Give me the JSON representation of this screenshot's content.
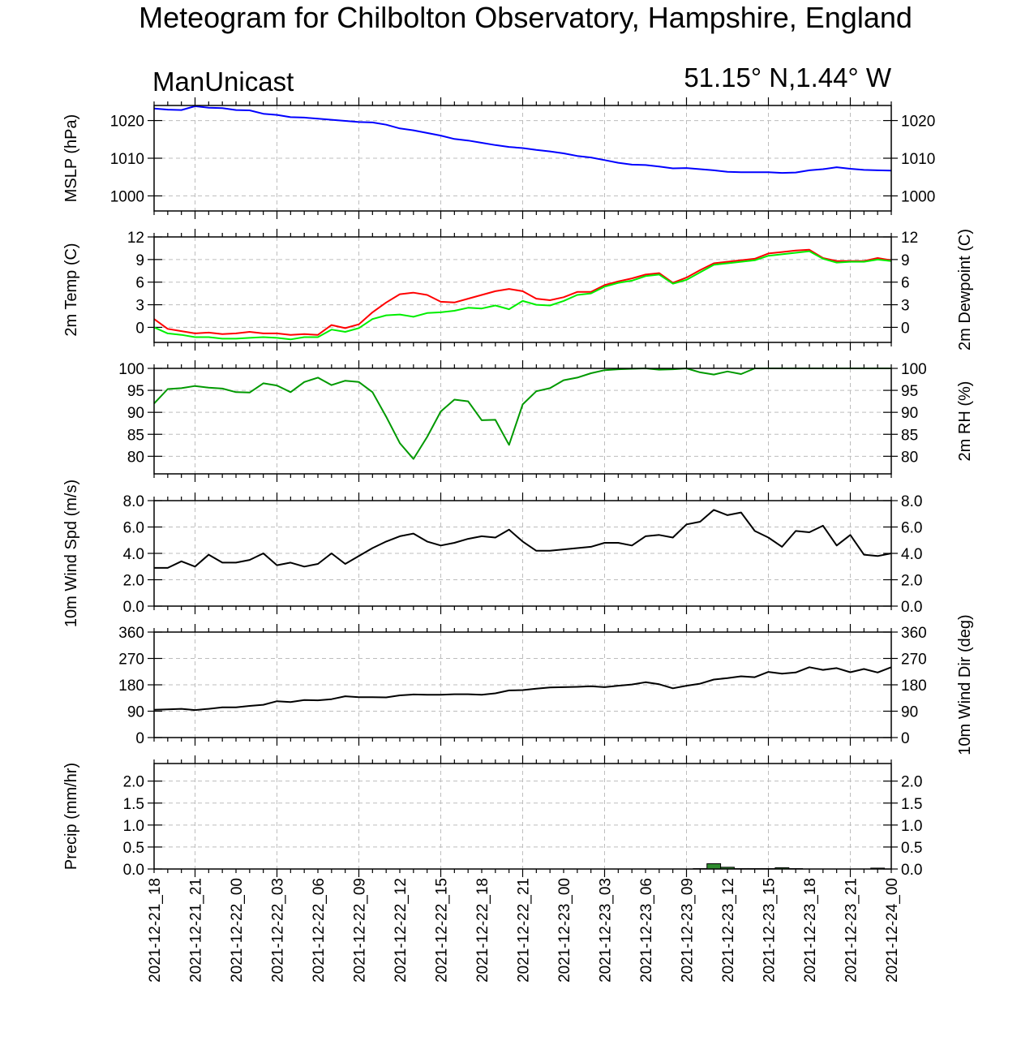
{
  "title": "Meteogram for Chilbolton Observatory, Hampshire, England",
  "model": "ManUnicast",
  "location": "51.15° N,1.44° W",
  "x_tick_labels": [
    "2021-12-21_18",
    "2021-12-21_21",
    "2021-12-22_00",
    "2021-12-22_03",
    "2021-12-22_06",
    "2021-12-22_09",
    "2021-12-22_12",
    "2021-12-22_15",
    "2021-12-22_18",
    "2021-12-22_21",
    "2021-12-23_00",
    "2021-12-23_03",
    "2021-12-23_06",
    "2021-12-23_09",
    "2021-12-23_12",
    "2021-12-23_15",
    "2021-12-23_18",
    "2021-12-23_21",
    "2021-12-24_00"
  ],
  "chart_data": [
    {
      "type": "line",
      "id": "mslp",
      "ylabel": "MSLP (hPa)",
      "ylabel_right": "",
      "ylim": [
        996,
        1024
      ],
      "yticks": [
        1000,
        1010,
        1020
      ],
      "ytick_labels": [
        "1000",
        "1010",
        "1020"
      ],
      "grid": true,
      "x": [
        0,
        1,
        2,
        3,
        4,
        5,
        6,
        7,
        8,
        9,
        10,
        11,
        12,
        13,
        14,
        15,
        16,
        17,
        18,
        19,
        20,
        21,
        22,
        23,
        24,
        25,
        26,
        27,
        28,
        29,
        30,
        31,
        32,
        33,
        34,
        35,
        36,
        37,
        38,
        39,
        40,
        41,
        42,
        43,
        44,
        45,
        46,
        47,
        48,
        49,
        50,
        51,
        52,
        53,
        54
      ],
      "series": [
        {
          "color": "#0000ff",
          "values": [
            1023.2,
            1022.9,
            1022.8,
            1023.8,
            1023.4,
            1023.3,
            1022.8,
            1022.7,
            1021.8,
            1021.5,
            1020.9,
            1020.8,
            1020.5,
            1020.2,
            1019.9,
            1019.6,
            1019.5,
            1018.9,
            1017.9,
            1017.4,
            1016.7,
            1016,
            1015.1,
            1014.7,
            1014.1,
            1013.5,
            1013,
            1012.7,
            1012.2,
            1011.8,
            1011.3,
            1010.6,
            1010.2,
            1009.5,
            1008.8,
            1008.3,
            1008.2,
            1007.8,
            1007.3,
            1007.4,
            1007.1,
            1006.8,
            1006.4,
            1006.3,
            1006.3,
            1006.3,
            1006.1,
            1006.2,
            1006.8,
            1007.1,
            1007.6,
            1007.2,
            1006.9,
            1006.8,
            1006.7
          ]
        }
      ]
    },
    {
      "type": "line",
      "id": "temp",
      "ylabel": "2m Temp (C)",
      "ylabel_right": "2m Dewpoint (C)",
      "ylim": [
        -2,
        12
      ],
      "yticks": [
        0,
        3,
        6,
        9,
        12
      ],
      "ytick_labels": [
        "0",
        "3",
        "6",
        "9",
        "12"
      ],
      "grid": true,
      "x": [
        0,
        1,
        2,
        3,
        4,
        5,
        6,
        7,
        8,
        9,
        10,
        11,
        12,
        13,
        14,
        15,
        16,
        17,
        18,
        19,
        20,
        21,
        22,
        23,
        24,
        25,
        26,
        27,
        28,
        29,
        30,
        31,
        32,
        33,
        34,
        35,
        36,
        37,
        38,
        39,
        40,
        41,
        42,
        43,
        44,
        45,
        46,
        47,
        48,
        49,
        50,
        51,
        52,
        53,
        54
      ],
      "series": [
        {
          "color": "#ff0000",
          "values": [
            1.1,
            -0.2,
            -0.5,
            -0.8,
            -0.7,
            -0.9,
            -0.8,
            -0.6,
            -0.8,
            -0.8,
            -1,
            -0.9,
            -1,
            0.3,
            -0.1,
            0.4,
            2,
            3.3,
            4.4,
            4.6,
            4.3,
            3.4,
            3.3,
            3.8,
            4.3,
            4.8,
            5.1,
            4.8,
            3.8,
            3.6,
            4,
            4.7,
            4.7,
            5.6,
            6.1,
            6.5,
            7,
            7.2,
            5.9,
            6.6,
            7.6,
            8.5,
            8.7,
            8.9,
            9.1,
            9.8,
            10,
            10.2,
            10.3,
            9.2,
            8.8,
            8.8,
            8.8,
            9.2,
            8.9
          ]
        },
        {
          "color": "#00ee00",
          "values": [
            0,
            -0.8,
            -1,
            -1.3,
            -1.3,
            -1.5,
            -1.5,
            -1.4,
            -1.3,
            -1.4,
            -1.6,
            -1.3,
            -1.3,
            -0.3,
            -0.6,
            -0.1,
            1.1,
            1.6,
            1.7,
            1.4,
            1.9,
            2,
            2.2,
            2.6,
            2.5,
            2.9,
            2.4,
            3.5,
            3,
            2.9,
            3.5,
            4.3,
            4.5,
            5.4,
            5.9,
            6.2,
            6.8,
            7,
            5.8,
            6.3,
            7.3,
            8.3,
            8.5,
            8.7,
            8.9,
            9.5,
            9.7,
            9.9,
            10.1,
            9.1,
            8.6,
            8.7,
            8.7,
            9,
            8.8
          ]
        }
      ]
    },
    {
      "type": "line",
      "id": "rh",
      "ylabel": "",
      "ylabel_right": "2m RH (%)",
      "ylim": [
        76,
        100
      ],
      "yticks": [
        80,
        85,
        90,
        95,
        100
      ],
      "ytick_labels": [
        "80",
        "85",
        "90",
        "95",
        "100"
      ],
      "grid": true,
      "x": [
        0,
        1,
        2,
        3,
        4,
        5,
        6,
        7,
        8,
        9,
        10,
        11,
        12,
        13,
        14,
        15,
        16,
        17,
        18,
        19,
        20,
        21,
        22,
        23,
        24,
        25,
        26,
        27,
        28,
        29,
        30,
        31,
        32,
        33,
        34,
        35,
        36,
        37,
        38,
        39,
        40,
        41,
        42,
        43,
        44,
        45,
        46,
        47,
        48,
        49,
        50,
        51,
        52,
        53,
        54
      ],
      "series": [
        {
          "color": "#009900",
          "values": [
            92,
            95.3,
            95.5,
            96,
            95.6,
            95.4,
            94.6,
            94.5,
            96.6,
            96.1,
            94.6,
            96.9,
            97.9,
            96.2,
            97.2,
            96.9,
            94.6,
            89,
            83,
            79.4,
            84.4,
            90.2,
            92.9,
            92.5,
            88.2,
            88.3,
            82.6,
            91.8,
            94.8,
            95.5,
            97.3,
            97.9,
            98.9,
            99.6,
            99.8,
            99.9,
            100,
            99.7,
            99.8,
            100,
            99.1,
            98.6,
            99.3,
            98.7,
            100,
            100,
            100,
            100,
            100,
            100,
            100,
            100,
            100,
            100,
            100
          ]
        }
      ]
    },
    {
      "type": "line",
      "id": "windspd",
      "ylabel": "10m Wind Spd (m/s)",
      "ylabel_right": "",
      "ylim": [
        0,
        8
      ],
      "yticks": [
        0,
        2,
        4,
        6,
        8
      ],
      "ytick_labels": [
        "0.0",
        "2.0",
        "4.0",
        "6.0",
        "8.0"
      ],
      "grid": true,
      "x": [
        0,
        1,
        2,
        3,
        4,
        5,
        6,
        7,
        8,
        9,
        10,
        11,
        12,
        13,
        14,
        15,
        16,
        17,
        18,
        19,
        20,
        21,
        22,
        23,
        24,
        25,
        26,
        27,
        28,
        29,
        30,
        31,
        32,
        33,
        34,
        35,
        36,
        37,
        38,
        39,
        40,
        41,
        42,
        43,
        44,
        45,
        46,
        47,
        48,
        49,
        50,
        51,
        52,
        53,
        54
      ],
      "series": [
        {
          "color": "#000000",
          "values": [
            2.9,
            2.9,
            3.4,
            3,
            3.9,
            3.3,
            3.3,
            3.5,
            4,
            3.1,
            3.3,
            3,
            3.2,
            4,
            3.2,
            3.8,
            4.4,
            4.9,
            5.3,
            5.5,
            4.9,
            4.6,
            4.8,
            5.1,
            5.3,
            5.2,
            5.8,
            4.9,
            4.2,
            4.2,
            4.3,
            4.4,
            4.5,
            4.8,
            4.8,
            4.6,
            5.3,
            5.4,
            5.2,
            6.2,
            6.4,
            7.3,
            6.9,
            7.1,
            5.7,
            5.2,
            4.5,
            5.7,
            5.6,
            6.1,
            4.6,
            5.4,
            3.9,
            3.8,
            4
          ]
        }
      ]
    },
    {
      "type": "line",
      "id": "winddir",
      "ylabel": "",
      "ylabel_right": "10m Wind Dir (deg)",
      "ylim": [
        0,
        360
      ],
      "yticks": [
        0,
        90,
        180,
        270,
        360
      ],
      "ytick_labels": [
        "0",
        "90",
        "180",
        "270",
        "360"
      ],
      "grid": true,
      "x": [
        0,
        1,
        2,
        3,
        4,
        5,
        6,
        7,
        8,
        9,
        10,
        11,
        12,
        13,
        14,
        15,
        16,
        17,
        18,
        19,
        20,
        21,
        22,
        23,
        24,
        25,
        26,
        27,
        28,
        29,
        30,
        31,
        32,
        33,
        34,
        35,
        36,
        37,
        38,
        39,
        40,
        41,
        42,
        43,
        44,
        45,
        46,
        47,
        48,
        49,
        50,
        51,
        52,
        53,
        54
      ],
      "series": [
        {
          "color": "#000000",
          "values": [
            95,
            96,
            98,
            94,
            98,
            103,
            103,
            108,
            112,
            124,
            121,
            128,
            127,
            131,
            141,
            138,
            138,
            137,
            144,
            147,
            146,
            146,
            148,
            148,
            146,
            151,
            161,
            162,
            167,
            171,
            172,
            173,
            175,
            172,
            177,
            181,
            189,
            182,
            168,
            177,
            184,
            198,
            203,
            209,
            206,
            224,
            218,
            222,
            240,
            231,
            237,
            223,
            234,
            222,
            240
          ]
        }
      ]
    },
    {
      "type": "bar",
      "id": "precip",
      "ylabel": "Precip (mm/hr)",
      "ylabel_right": "",
      "ylim": [
        0,
        2.4
      ],
      "yticks": [
        0,
        0.5,
        1.0,
        1.5,
        2.0
      ],
      "ytick_labels": [
        "0.0",
        "0.5",
        "1.0",
        "1.5",
        "2.0"
      ],
      "grid": true,
      "x": [
        40,
        41,
        42,
        43,
        44,
        45,
        46,
        47,
        53
      ],
      "series": [
        {
          "color": "#2e8b2e",
          "values": [
            0.01,
            0.12,
            0.04,
            0.01,
            0.01,
            0.01,
            0.03,
            0.01,
            0.02
          ]
        }
      ]
    }
  ]
}
